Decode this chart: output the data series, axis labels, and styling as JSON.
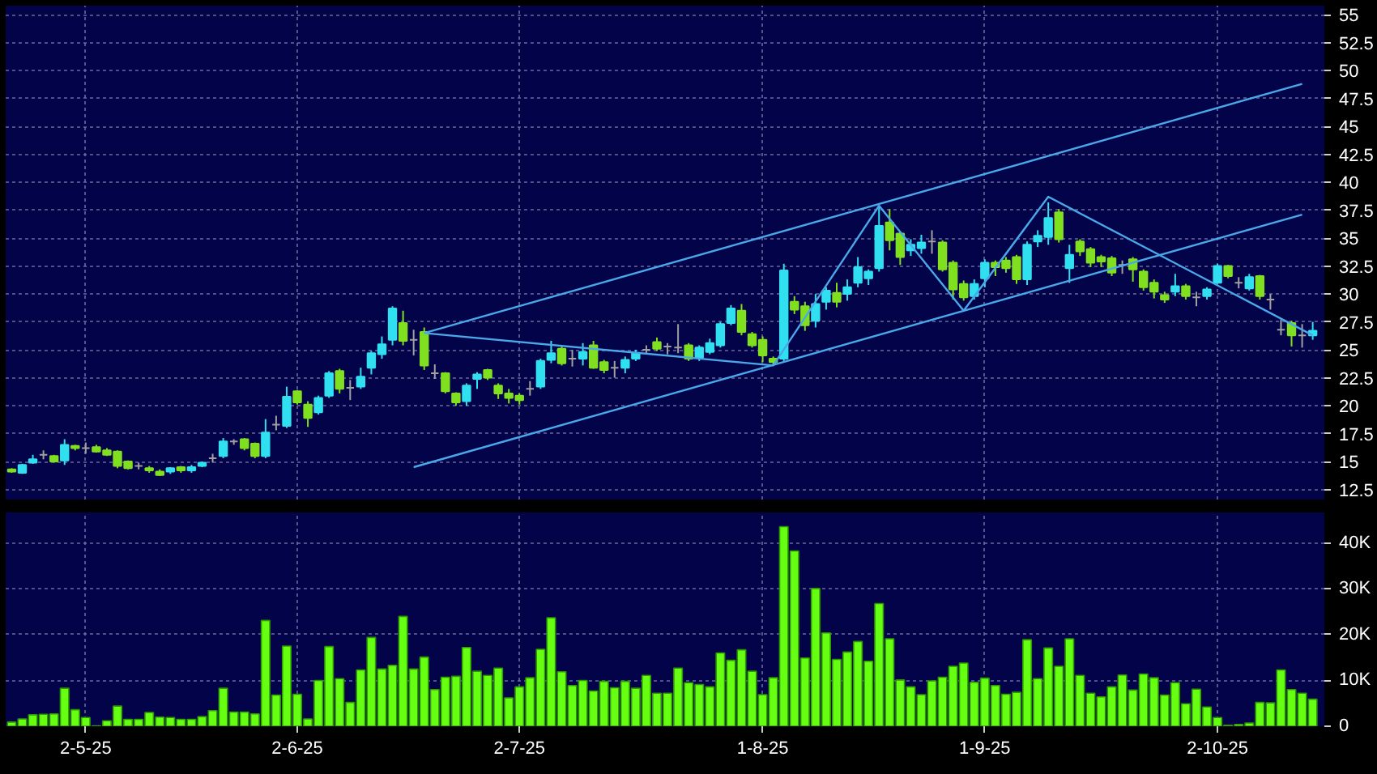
{
  "chart_data": [
    {
      "type": "candlestick",
      "categories": [
        null,
        null,
        null,
        null,
        null,
        null,
        null,
        null,
        null,
        null,
        null,
        null,
        null,
        null,
        null,
        null,
        null,
        null,
        null,
        null,
        null,
        null,
        null,
        null,
        null,
        null,
        null,
        null,
        null,
        null,
        null,
        null,
        null,
        null,
        null,
        null,
        null,
        null,
        null,
        null,
        null,
        null,
        null,
        null,
        null,
        null,
        null,
        null,
        null,
        null,
        null,
        null,
        null,
        null,
        null,
        null,
        null,
        null,
        null,
        null,
        null,
        null,
        null,
        null,
        null,
        null,
        null,
        null,
        null,
        null,
        null,
        null,
        null,
        null,
        null,
        null,
        null,
        null,
        null,
        null,
        null,
        null,
        null,
        null,
        null,
        null,
        null,
        null,
        null,
        null,
        null,
        null,
        null,
        null,
        null,
        null,
        null,
        null,
        null,
        null,
        null,
        null,
        null,
        null,
        null,
        null,
        null,
        null,
        null,
        null,
        null,
        null,
        null,
        null,
        null,
        null,
        null,
        null,
        null,
        null,
        null,
        null,
        null,
        null
      ],
      "ohlc": [
        [
          14.3,
          14.4,
          14.0,
          14.1
        ],
        [
          14.0,
          14.8,
          13.9,
          14.7
        ],
        [
          14.9,
          15.6,
          14.8,
          15.2
        ],
        [
          15.6,
          16.0,
          15.2,
          15.6
        ],
        [
          15.5,
          15.6,
          14.9,
          15.0
        ],
        [
          15.1,
          17.0,
          14.7,
          16.5
        ],
        [
          16.4,
          16.5,
          16.0,
          16.2
        ],
        [
          16.2,
          16.7,
          15.7,
          16.2
        ],
        [
          16.3,
          16.5,
          15.8,
          15.9
        ],
        [
          16.0,
          16.2,
          15.5,
          15.6
        ],
        [
          15.9,
          16.0,
          14.4,
          14.6
        ],
        [
          15.0,
          15.1,
          14.3,
          14.4
        ],
        [
          14.6,
          14.9,
          14.3,
          14.6
        ],
        [
          14.4,
          14.6,
          14.0,
          14.2
        ],
        [
          14.1,
          14.3,
          13.7,
          13.8
        ],
        [
          14.1,
          14.5,
          13.9,
          14.4
        ],
        [
          14.5,
          14.6,
          14.0,
          14.2
        ],
        [
          14.2,
          14.7,
          14.0,
          14.5
        ],
        [
          14.6,
          15.0,
          14.5,
          14.9
        ],
        [
          15.3,
          15.7,
          14.9,
          15.3
        ],
        [
          15.5,
          17.1,
          15.3,
          16.8
        ],
        [
          16.8,
          17.0,
          16.5,
          16.8
        ],
        [
          17.0,
          17.1,
          16.0,
          16.2
        ],
        [
          16.6,
          16.7,
          15.3,
          15.5
        ],
        [
          15.5,
          18.8,
          15.3,
          17.6
        ],
        [
          18.3,
          19.1,
          17.8,
          18.3
        ],
        [
          18.2,
          21.7,
          18.0,
          20.8
        ],
        [
          21.3,
          21.4,
          20.1,
          20.3
        ],
        [
          20.1,
          20.4,
          18.1,
          18.9
        ],
        [
          19.4,
          20.9,
          19.2,
          20.7
        ],
        [
          20.9,
          23.1,
          20.7,
          22.9
        ],
        [
          23.1,
          23.3,
          21.1,
          21.5
        ],
        [
          21.6,
          22.3,
          20.5,
          21.6
        ],
        [
          21.7,
          23.4,
          21.5,
          22.6
        ],
        [
          23.4,
          24.9,
          22.8,
          24.7
        ],
        [
          24.6,
          26.2,
          24.2,
          25.5
        ],
        [
          25.9,
          28.9,
          25.4,
          28.7
        ],
        [
          27.4,
          28.5,
          25.4,
          25.8
        ],
        [
          25.9,
          26.8,
          24.5,
          25.9
        ],
        [
          26.6,
          27.0,
          23.2,
          23.6
        ],
        [
          22.9,
          23.7,
          22.4,
          22.9
        ],
        [
          22.9,
          23.0,
          21.1,
          21.3
        ],
        [
          21.1,
          21.2,
          20.0,
          20.3
        ],
        [
          20.4,
          22.0,
          20.0,
          21.8
        ],
        [
          22.4,
          23.0,
          21.5,
          22.8
        ],
        [
          23.2,
          23.3,
          22.3,
          22.5
        ],
        [
          21.8,
          22.0,
          20.6,
          21.1
        ],
        [
          21.1,
          21.5,
          20.2,
          20.7
        ],
        [
          20.9,
          21.1,
          20.1,
          20.5
        ],
        [
          21.5,
          22.2,
          20.9,
          21.5
        ],
        [
          21.7,
          24.2,
          21.5,
          24.0
        ],
        [
          24.1,
          25.8,
          23.8,
          24.7
        ],
        [
          25.1,
          25.3,
          23.6,
          23.8
        ],
        [
          24.2,
          25.0,
          23.5,
          24.2
        ],
        [
          24.2,
          25.6,
          23.6,
          24.8
        ],
        [
          25.4,
          25.8,
          23.3,
          23.4
        ],
        [
          23.9,
          24.1,
          22.9,
          23.2
        ],
        [
          23.4,
          24.0,
          22.5,
          23.4
        ],
        [
          23.4,
          24.4,
          22.9,
          24.1
        ],
        [
          24.2,
          25.0,
          24.0,
          24.7
        ],
        [
          25.0,
          25.4,
          24.7,
          25.0
        ],
        [
          25.7,
          26.1,
          24.9,
          25.1
        ],
        [
          25.3,
          25.6,
          24.6,
          25.3
        ],
        [
          25.2,
          27.3,
          24.7,
          25.2
        ],
        [
          25.4,
          25.6,
          24.0,
          24.2
        ],
        [
          24.3,
          25.4,
          24.0,
          25.2
        ],
        [
          24.8,
          26.0,
          24.6,
          25.6
        ],
        [
          25.4,
          27.5,
          25.2,
          27.3
        ],
        [
          27.4,
          29.0,
          27.2,
          28.7
        ],
        [
          28.5,
          29.1,
          26.3,
          26.6
        ],
        [
          26.4,
          26.6,
          25.2,
          25.4
        ],
        [
          25.9,
          26.2,
          23.9,
          24.5
        ],
        [
          24.2,
          24.4,
          23.7,
          23.9
        ],
        [
          24.2,
          32.7,
          24.0,
          32.1
        ],
        [
          29.3,
          29.8,
          28.2,
          28.6
        ],
        [
          28.9,
          29.3,
          26.7,
          27.2
        ],
        [
          27.6,
          30.0,
          27.0,
          29.1
        ],
        [
          29.3,
          30.6,
          28.6,
          30.3
        ],
        [
          30.1,
          31.0,
          28.8,
          29.3
        ],
        [
          30.0,
          31.3,
          29.4,
          30.6
        ],
        [
          31.0,
          33.3,
          30.6,
          32.4
        ],
        [
          31.4,
          32.2,
          30.8,
          32.0
        ],
        [
          32.3,
          37.8,
          32.0,
          36.1
        ],
        [
          36.4,
          37.6,
          33.9,
          34.8
        ],
        [
          35.4,
          35.6,
          32.6,
          33.3
        ],
        [
          33.9,
          34.9,
          33.4,
          34.4
        ],
        [
          34.1,
          35.3,
          33.6,
          34.6
        ],
        [
          34.7,
          35.7,
          33.6,
          34.7
        ],
        [
          34.6,
          34.8,
          32.0,
          32.2
        ],
        [
          32.8,
          33.0,
          29.5,
          30.4
        ],
        [
          30.9,
          31.2,
          29.4,
          29.7
        ],
        [
          29.8,
          31.3,
          29.5,
          30.9
        ],
        [
          31.4,
          33.1,
          30.6,
          32.8
        ],
        [
          32.8,
          33.0,
          31.6,
          32.4
        ],
        [
          33.0,
          33.3,
          31.9,
          32.3
        ],
        [
          33.3,
          33.5,
          30.9,
          31.3
        ],
        [
          31.3,
          34.7,
          30.8,
          34.4
        ],
        [
          34.7,
          35.7,
          34.2,
          35.2
        ],
        [
          35.1,
          38.2,
          34.4,
          36.8
        ],
        [
          37.3,
          37.6,
          34.6,
          34.9
        ],
        [
          32.3,
          34.4,
          31.0,
          33.5
        ],
        [
          34.7,
          34.9,
          33.4,
          33.8
        ],
        [
          34.0,
          34.2,
          32.4,
          32.8
        ],
        [
          33.3,
          33.5,
          32.4,
          32.9
        ],
        [
          33.2,
          33.4,
          31.6,
          31.9
        ],
        [
          32.6,
          33.0,
          31.8,
          32.6
        ],
        [
          33.1,
          33.3,
          31.1,
          32.2
        ],
        [
          32.0,
          32.2,
          30.3,
          30.6
        ],
        [
          31.0,
          31.3,
          29.6,
          30.2
        ],
        [
          29.9,
          30.2,
          29.2,
          29.5
        ],
        [
          30.2,
          31.8,
          29.8,
          30.7
        ],
        [
          30.7,
          30.9,
          29.5,
          29.8
        ],
        [
          29.7,
          30.2,
          28.9,
          29.7
        ],
        [
          29.8,
          30.6,
          29.5,
          30.4
        ],
        [
          31.0,
          32.7,
          30.9,
          32.5
        ],
        [
          32.5,
          32.6,
          31.4,
          31.6
        ],
        [
          31.0,
          31.5,
          30.5,
          31.0
        ],
        [
          30.5,
          31.8,
          30.3,
          31.5
        ],
        [
          31.6,
          31.7,
          29.5,
          29.8
        ],
        [
          29.5,
          30.0,
          28.6,
          29.5
        ],
        [
          26.8,
          27.7,
          26.3,
          26.8
        ],
        [
          27.4,
          27.6,
          25.3,
          26.3
        ],
        [
          26.3,
          27.3,
          25.2,
          26.3
        ],
        [
          26.3,
          27.5,
          25.9,
          26.7
        ]
      ],
      "colors": [
        "#80e020",
        "#30e0f0",
        "#30e0f0",
        "#a0a0a0",
        "#80e020",
        "#30e0f0",
        "#80e020",
        "#a0a0a0",
        "#80e020",
        "#80e020",
        "#80e020",
        "#80e020",
        "#a0a0a0",
        "#80e020",
        "#80e020",
        "#30e0f0",
        "#80e020",
        "#30e0f0",
        "#30e0f0",
        "#a0a0a0",
        "#30e0f0",
        "#a0a0a0",
        "#80e020",
        "#80e020",
        "#30e0f0",
        "#a0a0a0",
        "#30e0f0",
        "#80e020",
        "#80e020",
        "#30e0f0",
        "#30e0f0",
        "#80e020",
        "#a0a0a0",
        "#30e0f0",
        "#30e0f0",
        "#30e0f0",
        "#30e0f0",
        "#80e020",
        "#a0a0a0",
        "#80e020",
        "#a0a0a0",
        "#80e020",
        "#80e020",
        "#30e0f0",
        "#30e0f0",
        "#80e020",
        "#80e020",
        "#80e020",
        "#80e020",
        "#a0a0a0",
        "#30e0f0",
        "#30e0f0",
        "#80e020",
        "#a0a0a0",
        "#30e0f0",
        "#80e020",
        "#80e020",
        "#a0a0a0",
        "#30e0f0",
        "#30e0f0",
        "#a0a0a0",
        "#80e020",
        "#a0a0a0",
        "#a0a0a0",
        "#80e020",
        "#30e0f0",
        "#30e0f0",
        "#30e0f0",
        "#30e0f0",
        "#80e020",
        "#80e020",
        "#80e020",
        "#80e020",
        "#30e0f0",
        "#80e020",
        "#80e020",
        "#30e0f0",
        "#30e0f0",
        "#80e020",
        "#30e0f0",
        "#30e0f0",
        "#30e0f0",
        "#30e0f0",
        "#80e020",
        "#80e020",
        "#30e0f0",
        "#30e0f0",
        "#a0a0a0",
        "#80e020",
        "#80e020",
        "#80e020",
        "#30e0f0",
        "#30e0f0",
        "#80e020",
        "#80e020",
        "#80e020",
        "#30e0f0",
        "#30e0f0",
        "#30e0f0",
        "#80e020",
        "#30e0f0",
        "#80e020",
        "#80e020",
        "#80e020",
        "#80e020",
        "#a0a0a0",
        "#80e020",
        "#80e020",
        "#80e020",
        "#80e020",
        "#30e0f0",
        "#80e020",
        "#a0a0a0",
        "#30e0f0",
        "#30e0f0",
        "#80e020",
        "#a0a0a0",
        "#30e0f0",
        "#80e020",
        "#a0a0a0",
        "#a0a0a0",
        "#80e020",
        "#a0a0a0",
        "#30e0f0"
      ],
      "series": [
        {
          "type": "line",
          "color": "#4aa8e8",
          "values": [
            null,
            null,
            null,
            null,
            null,
            null,
            null,
            null,
            null,
            null,
            null,
            null,
            null,
            null,
            null,
            null,
            null,
            null,
            null,
            null,
            null,
            null,
            null,
            null,
            null,
            null,
            null,
            null,
            null,
            null,
            null,
            null,
            null,
            null,
            null,
            null,
            null,
            null,
            null,
            26.5,
            null,
            null,
            null,
            null,
            null,
            null,
            null,
            null,
            null,
            null,
            null,
            null,
            null,
            null,
            null,
            null,
            null,
            null,
            null,
            null,
            null,
            null,
            null,
            null,
            null,
            null,
            null,
            null,
            null,
            null,
            null,
            null,
            null,
            null,
            null,
            null,
            null,
            null,
            null,
            null,
            null,
            null,
            null,
            null,
            null,
            null,
            null,
            null,
            null,
            null,
            null,
            null,
            null,
            null,
            null,
            null,
            null,
            null,
            null,
            null,
            null,
            null,
            null,
            null,
            null,
            null,
            null,
            null,
            null,
            null,
            null,
            null,
            null,
            null,
            null,
            null,
            null,
            null,
            null,
            null,
            null,
            null,
            48.8,
            null
          ]
        },
        {
          "type": "line",
          "color": "#4aa8e8",
          "values": [
            null,
            null,
            null,
            null,
            null,
            null,
            null,
            null,
            null,
            null,
            null,
            null,
            null,
            null,
            null,
            null,
            null,
            null,
            null,
            null,
            null,
            null,
            null,
            null,
            null,
            null,
            null,
            null,
            null,
            null,
            null,
            null,
            null,
            null,
            null,
            null,
            null,
            null,
            14.5,
            null,
            null,
            null,
            null,
            null,
            null,
            null,
            null,
            null,
            null,
            null,
            null,
            null,
            null,
            null,
            null,
            null,
            null,
            null,
            null,
            null,
            null,
            null,
            null,
            null,
            null,
            null,
            null,
            null,
            null,
            null,
            null,
            null,
            null,
            null,
            null,
            null,
            null,
            null,
            null,
            null,
            null,
            null,
            null,
            null,
            null,
            null,
            null,
            null,
            null,
            null,
            null,
            null,
            null,
            null,
            null,
            null,
            null,
            null,
            null,
            null,
            null,
            null,
            null,
            null,
            null,
            null,
            null,
            null,
            null,
            null,
            null,
            null,
            null,
            null,
            null,
            null,
            null,
            null,
            null,
            null,
            null,
            null,
            37.1,
            null
          ]
        },
        {
          "type": "line",
          "color": "#4aa8e8",
          "values": [
            null,
            null,
            null,
            null,
            null,
            null,
            null,
            null,
            null,
            null,
            null,
            null,
            null,
            null,
            null,
            null,
            null,
            null,
            null,
            null,
            null,
            null,
            null,
            null,
            null,
            null,
            null,
            null,
            null,
            null,
            null,
            null,
            null,
            null,
            null,
            null,
            null,
            null,
            null,
            26.5,
            null,
            null,
            null,
            null,
            null,
            null,
            null,
            null,
            null,
            null,
            null,
            null,
            null,
            null,
            null,
            null,
            null,
            null,
            null,
            null,
            null,
            null,
            null,
            null,
            null,
            null,
            null,
            null,
            null,
            null,
            null,
            null,
            23.6,
            null,
            null,
            null,
            null,
            null,
            null,
            null,
            null,
            null,
            37.9,
            null,
            null,
            null,
            null,
            null,
            null,
            null,
            28.5,
            null,
            null,
            null,
            null,
            null,
            null,
            null,
            38.7,
            null,
            null,
            null,
            null,
            null,
            null,
            null,
            null,
            null,
            null,
            null,
            null,
            null,
            null,
            null,
            null,
            null,
            null,
            null,
            null,
            null,
            null,
            null,
            null,
            26.3
          ]
        }
      ],
      "ylim": [
        11.6,
        55.8
      ],
      "yticks": [
        12.5,
        15,
        17.5,
        20,
        22.5,
        25,
        27.5,
        30,
        32.5,
        35,
        37.5,
        40,
        42.5,
        45,
        47.5,
        50,
        52.5,
        55
      ],
      "grid": true,
      "tick_labels": "y"
    },
    {
      "type": "bar",
      "categories": [
        null,
        null,
        null,
        null,
        null,
        null,
        null,
        "2-5-25",
        null,
        null,
        null,
        null,
        null,
        null,
        null,
        null,
        null,
        null,
        null,
        null,
        null,
        null,
        null,
        null,
        null,
        null,
        null,
        "2-6-25",
        null,
        null,
        null,
        null,
        null,
        null,
        null,
        null,
        null,
        null,
        null,
        null,
        null,
        null,
        null,
        null,
        null,
        null,
        null,
        null,
        "2-7-25",
        null,
        null,
        null,
        null,
        null,
        null,
        null,
        null,
        null,
        null,
        null,
        null,
        null,
        null,
        null,
        null,
        null,
        null,
        null,
        null,
        null,
        null,
        "1-8-25",
        null,
        null,
        null,
        null,
        null,
        null,
        null,
        null,
        null,
        null,
        null,
        null,
        null,
        null,
        null,
        null,
        null,
        null,
        null,
        null,
        "1-9-25",
        null,
        null,
        null,
        null,
        null,
        null,
        null,
        null,
        null,
        null,
        null,
        null,
        null,
        null,
        null,
        null,
        null,
        null,
        null,
        null,
        null,
        "2-10-25",
        null,
        null,
        null,
        null,
        null,
        null,
        null,
        null,
        null
      ],
      "color": "#66ff11",
      "values": [
        900,
        1600,
        2500,
        2600,
        2700,
        8300,
        3600,
        1900,
        100,
        1200,
        4400,
        1500,
        1500,
        3000,
        2000,
        1900,
        1500,
        1500,
        2100,
        3400,
        8300,
        3100,
        3100,
        2700,
        23100,
        6800,
        17500,
        7000,
        1600,
        10000,
        17400,
        10400,
        5200,
        12300,
        19400,
        12500,
        13300,
        24000,
        12500,
        15100,
        8000,
        10700,
        10900,
        17200,
        12000,
        11100,
        12700,
        6200,
        8600,
        10600,
        16800,
        23700,
        11900,
        8900,
        10000,
        7700,
        9800,
        8400,
        9800,
        8300,
        11100,
        7200,
        7200,
        12700,
        9500,
        9100,
        8600,
        16000,
        14400,
        16700,
        12000,
        6900,
        10600,
        43600,
        38300,
        14900,
        30100,
        20400,
        14600,
        16200,
        18500,
        14200,
        26800,
        19100,
        10100,
        8600,
        6900,
        9900,
        10700,
        13100,
        13800,
        9600,
        10500,
        8900,
        7000,
        7400,
        18900,
        10400,
        17100,
        13100,
        19100,
        11100,
        7200,
        6400,
        8600,
        11200,
        7900,
        11400,
        10600,
        6800,
        9500,
        4900,
        8100,
        4200,
        1900,
        200,
        400,
        700,
        5200,
        5100,
        12300,
        8000,
        7200,
        5900
      ],
      "ylim": [
        0,
        46700
      ],
      "yticks": [
        {
          "value": 0,
          "label": "0"
        },
        {
          "value": 10000,
          "label": "10K"
        },
        {
          "value": 20000,
          "label": "20K"
        },
        {
          "value": 30000,
          "label": "30K"
        },
        {
          "value": 40000,
          "label": "40K"
        }
      ],
      "grid": true
    }
  ]
}
